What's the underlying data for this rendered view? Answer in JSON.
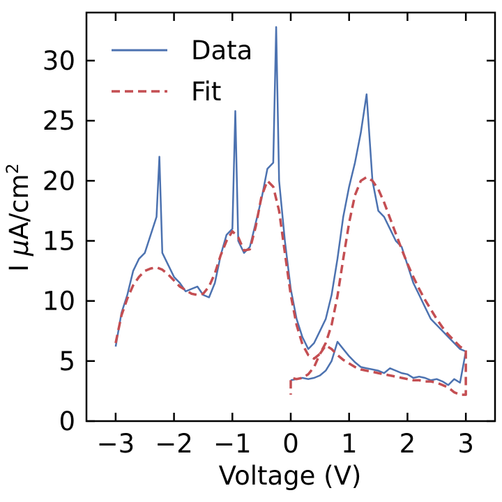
{
  "chart_data": {
    "type": "line",
    "title": "",
    "xlabel": "Voltage (V)",
    "ylabel_prefix": "I ",
    "ylabel_mu": "μ",
    "ylabel_unit": "A/cm",
    "ylabel_sup": "2",
    "xlim": [
      -3.5,
      3.5
    ],
    "ylim": [
      0,
      34
    ],
    "xticks": [
      -3,
      -2,
      -1,
      0,
      1,
      2,
      3
    ],
    "xtick_labels": [
      "−3",
      "−2",
      "−1",
      "0",
      "1",
      "2",
      "3"
    ],
    "yticks": [
      0,
      5,
      10,
      15,
      20,
      25,
      30
    ],
    "ytick_labels": [
      "0",
      "5",
      "10",
      "15",
      "20",
      "25",
      "30"
    ],
    "grid": false,
    "legend_position": "top-left",
    "series": [
      {
        "name": "Data",
        "color": "#4c72b0",
        "style": "solid",
        "x": [
          -3.0,
          -2.9,
          -2.8,
          -2.7,
          -2.6,
          -2.5,
          -2.4,
          -2.3,
          -2.25,
          -2.2,
          -2.1,
          -2.0,
          -1.9,
          -1.8,
          -1.7,
          -1.6,
          -1.5,
          -1.4,
          -1.3,
          -1.2,
          -1.1,
          -1.0,
          -0.95,
          -0.9,
          -0.8,
          -0.7,
          -0.6,
          -0.5,
          -0.4,
          -0.3,
          -0.25,
          -0.2,
          -0.1,
          0.0,
          0.1,
          0.2,
          0.3,
          0.4,
          0.5,
          0.6,
          0.7,
          0.8,
          0.9,
          1.0,
          1.1,
          1.2,
          1.3,
          1.4,
          1.5,
          1.6,
          1.7,
          1.8,
          1.9,
          2.0,
          2.1,
          2.2,
          2.3,
          2.4,
          2.5,
          2.6,
          2.7,
          2.8,
          2.9,
          3.0,
          2.95,
          2.9,
          2.8,
          2.7,
          2.6,
          2.5,
          2.4,
          2.3,
          2.2,
          2.1,
          2.0,
          1.9,
          1.8,
          1.7,
          1.6,
          1.5,
          1.4,
          1.3,
          1.2,
          1.1,
          1.0,
          0.9,
          0.8,
          0.7,
          0.6,
          0.5,
          0.4,
          0.3,
          0.2,
          0.1,
          0.0
        ],
        "y": [
          6.2,
          9.0,
          10.5,
          12.5,
          13.5,
          14.0,
          15.5,
          17.0,
          22.0,
          14.0,
          13.0,
          12.0,
          11.5,
          10.8,
          11.0,
          11.2,
          10.5,
          10.3,
          11.5,
          13.8,
          15.5,
          16.0,
          25.8,
          15.0,
          14.0,
          14.5,
          16.5,
          18.5,
          21.0,
          21.5,
          32.8,
          20.0,
          15.0,
          11.0,
          8.5,
          7.0,
          6.0,
          6.5,
          7.5,
          8.5,
          10.5,
          13.5,
          17.0,
          19.5,
          21.5,
          24.0,
          27.2,
          20.0,
          17.5,
          17.0,
          16.0,
          15.0,
          14.5,
          13.0,
          11.5,
          10.5,
          9.5,
          8.5,
          8.0,
          7.5,
          7.0,
          6.5,
          6.0,
          5.8,
          4.5,
          3.2,
          3.5,
          3.0,
          3.3,
          3.5,
          3.4,
          3.6,
          3.7,
          3.6,
          3.9,
          4.0,
          4.2,
          4.4,
          4.0,
          4.2,
          4.3,
          4.4,
          4.5,
          4.9,
          5.4,
          6.0,
          6.6,
          5.0,
          4.2,
          3.8,
          3.6,
          3.5,
          3.6,
          3.5,
          3.4
        ]
      },
      {
        "name": "Fit",
        "color": "#c44e52",
        "style": "dashed",
        "x": [
          -3.0,
          -2.9,
          -2.8,
          -2.7,
          -2.6,
          -2.5,
          -2.4,
          -2.3,
          -2.2,
          -2.1,
          -2.0,
          -1.9,
          -1.8,
          -1.7,
          -1.6,
          -1.5,
          -1.4,
          -1.3,
          -1.2,
          -1.1,
          -1.0,
          -0.9,
          -0.8,
          -0.7,
          -0.6,
          -0.5,
          -0.4,
          -0.3,
          -0.2,
          -0.1,
          0.0,
          0.1,
          0.2,
          0.3,
          0.4,
          0.5,
          0.6,
          0.7,
          0.8,
          0.9,
          1.0,
          1.1,
          1.2,
          1.3,
          1.4,
          1.5,
          1.6,
          1.7,
          1.8,
          1.9,
          2.0,
          2.1,
          2.2,
          2.3,
          2.4,
          2.5,
          2.6,
          2.7,
          2.8,
          2.9,
          3.0,
          3.0,
          2.9,
          2.8,
          2.7,
          2.6,
          2.5,
          2.4,
          2.3,
          2.2,
          2.1,
          2.0,
          1.9,
          1.8,
          1.7,
          1.6,
          1.5,
          1.4,
          1.3,
          1.2,
          1.1,
          1.0,
          0.9,
          0.8,
          0.7,
          0.6,
          0.5,
          0.4,
          0.3,
          0.2,
          0.1,
          0.0,
          0.0
        ],
        "y": [
          6.5,
          8.8,
          10.2,
          11.3,
          12.0,
          12.5,
          12.7,
          12.8,
          12.6,
          12.2,
          11.7,
          11.2,
          10.9,
          10.6,
          10.5,
          10.6,
          11.2,
          12.3,
          13.8,
          15.0,
          15.8,
          15.3,
          14.2,
          14.3,
          16.2,
          18.7,
          20.0,
          19.5,
          17.5,
          14.0,
          10.5,
          8.0,
          6.4,
          5.5,
          5.2,
          5.6,
          6.5,
          8.0,
          10.4,
          13.5,
          16.5,
          18.8,
          20.0,
          20.3,
          20.0,
          19.3,
          18.2,
          16.9,
          15.6,
          14.3,
          13.1,
          12.0,
          11.0,
          10.1,
          9.3,
          8.5,
          7.8,
          7.2,
          6.7,
          6.2,
          5.9,
          2.2,
          2.2,
          2.4,
          2.8,
          3.0,
          3.2,
          3.3,
          3.3,
          3.4,
          3.4,
          3.5,
          3.6,
          3.7,
          3.8,
          3.9,
          4.0,
          4.1,
          4.2,
          4.3,
          4.5,
          4.8,
          5.1,
          5.5,
          6.0,
          6.3,
          5.6,
          4.5,
          3.9,
          3.6,
          3.5,
          3.6,
          2.2
        ]
      }
    ]
  }
}
